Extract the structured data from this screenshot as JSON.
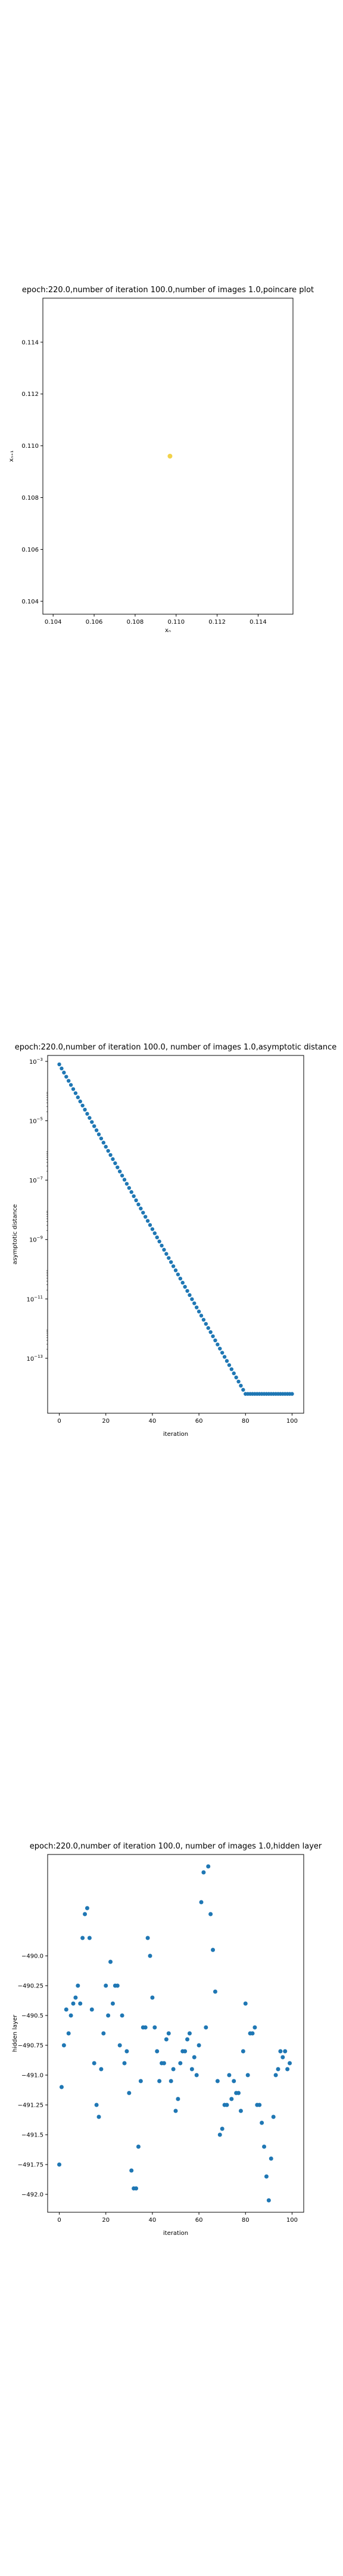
{
  "chart_data": [
    {
      "type": "scatter",
      "title": "epoch:220.0,number of iteration 100.0,number of images 1.0,poincare plot",
      "xlabel": "xₙ",
      "ylabel": "xₙ₊₁",
      "xlim": [
        0.1035,
        0.1157
      ],
      "ylim": [
        0.1035,
        0.1157
      ],
      "xticks": [
        "0.104",
        "0.106",
        "0.108",
        "0.110",
        "0.112",
        "0.114"
      ],
      "yticks": [
        "0.104",
        "0.106",
        "0.108",
        "0.110",
        "0.112",
        "0.114"
      ],
      "marker_color": "#f2d24a",
      "points": [
        {
          "x": 0.1097,
          "y": 0.1096
        }
      ]
    },
    {
      "type": "scatter",
      "title": "epoch:220.0,number of iteration 100.0,  number of images 1.0,asymptotic distance",
      "xlabel": "iteration",
      "ylabel": "asymptotic distance",
      "yscale": "log",
      "xlim": [
        -5,
        105
      ],
      "ylim_log10": [
        -14.85,
        -2.8
      ],
      "xticks": [
        "0",
        "20",
        "40",
        "60",
        "80",
        "100"
      ],
      "yticks": [
        {
          "base": "10",
          "exp": "−3",
          "log": -3
        },
        {
          "base": "10",
          "exp": "−5",
          "log": -5
        },
        {
          "base": "10",
          "exp": "−7",
          "log": -7
        },
        {
          "base": "10",
          "exp": "−9",
          "log": -9
        },
        {
          "base": "10",
          "exp": "−11",
          "log": -11
        },
        {
          "base": "10",
          "exp": "−13",
          "log": -13
        }
      ],
      "marker_color": "#1f77b4",
      "series": [
        {
          "x_start": 0,
          "x_end": 80,
          "log10_start": -3.1,
          "log10_end": -14.2
        },
        {
          "x_start": 81,
          "x_end": 100,
          "log10_value": -14.2
        }
      ]
    },
    {
      "type": "scatter",
      "title": "epoch:220.0,number of iteration 100.0,  number of images 1.0,hidden layer",
      "xlabel": "iteration",
      "ylabel": "hidden layer",
      "xlim": [
        -5,
        105
      ],
      "ylim": [
        -490.1,
        -489.94
      ],
      "xticks": [
        "0",
        "20",
        "40",
        "60",
        "80",
        "100"
      ],
      "yticks": [
        {
          "label": "−490.0",
          "value": -490.0
        },
        {
          "label": "−490.25",
          "value": -490.25
        },
        {
          "label": "−490.5",
          "value": -490.5
        },
        {
          "label": "−490.75",
          "value": -490.75
        },
        {
          "label": "−491.0",
          "value": -491.0
        },
        {
          "label": "−491.25",
          "value": -491.25
        },
        {
          "label": "−491.5",
          "value": -491.5
        },
        {
          "label": "−491.75",
          "value": -491.75
        },
        {
          "label": "−492.0",
          "value": -492.0
        }
      ],
      "marker_color": "#1f77b4",
      "y_values": [
        -491.75,
        -491.1,
        -490.75,
        -490.45,
        -490.65,
        -490.5,
        -490.4,
        -490.35,
        -490.25,
        -490.4,
        -489.85,
        -489.65,
        -489.6,
        -489.85,
        -490.45,
        -490.9,
        -491.25,
        -491.35,
        -490.95,
        -490.65,
        -490.25,
        -490.5,
        -490.05,
        -490.4,
        -490.25,
        -490.25,
        -490.75,
        -490.5,
        -490.9,
        -490.8,
        -491.15,
        -491.8,
        -491.95,
        -491.95,
        -491.6,
        -491.05,
        -490.6,
        -490.6,
        -489.85,
        -490.0,
        -490.35,
        -490.6,
        -490.8,
        -491.05,
        -490.9,
        -490.9,
        -490.7,
        -490.65,
        -491.05,
        -490.95,
        -491.3,
        -491.2,
        -490.9,
        -490.8,
        -490.8,
        -490.7,
        -490.65,
        -490.95,
        -490.85,
        -491.0,
        -490.75,
        -489.55,
        -489.3,
        -490.6,
        -489.25,
        -489.65,
        -489.95,
        -490.3,
        -491.05,
        -491.5,
        -491.45,
        -491.25,
        -491.25,
        -491.0,
        -491.2,
        -491.05,
        -491.15,
        -491.15,
        -491.3,
        -490.8,
        -490.4,
        -491.0,
        -490.65,
        -490.65,
        -490.6,
        -491.25,
        -491.25,
        -491.4,
        -491.6,
        -491.85,
        -492.05,
        -491.7,
        -491.35,
        -491.0,
        -490.95,
        -490.8,
        -490.85,
        -490.8,
        -490.95,
        -490.9
      ]
    }
  ]
}
